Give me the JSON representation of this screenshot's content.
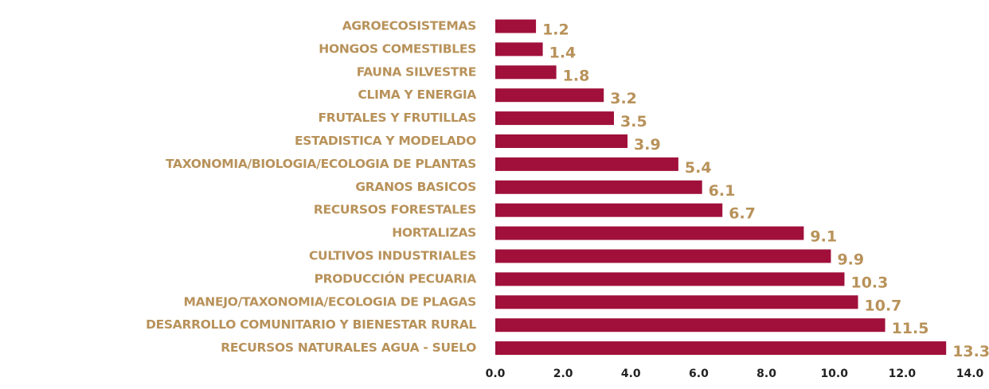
{
  "chart_data": {
    "type": "barh",
    "categories": [
      "AGROECOSISTEMAS",
      "HONGOS COMESTIBLES",
      "FAUNA SILVESTRE",
      "CLIMA  Y ENERGIA",
      "FRUTALES Y FRUTILLAS",
      "ESTADISTICA Y MODELADO",
      "TAXONOMIA/BIOLOGIA/ECOLOGIA DE PLANTAS",
      "GRANOS BASICOS",
      "RECURSOS FORESTALES",
      "HORTALIZAS",
      "CULTIVOS INDUSTRIALES",
      "PRODUCCIÓN PECUARIA",
      "MANEJO/TAXONOMIA/ECOLOGIA DE PLAGAS",
      "DESARROLLO COMUNITARIO Y BIENESTAR RURAL",
      "RECURSOS NATURALES AGUA - SUELO"
    ],
    "values": [
      1.2,
      1.4,
      1.8,
      3.2,
      3.5,
      3.9,
      5.4,
      6.1,
      6.7,
      9.1,
      9.9,
      10.3,
      10.7,
      11.5,
      13.3
    ],
    "color": "#a0103a",
    "xlim": [
      0,
      14
    ],
    "xticks": [
      {
        "value": 0,
        "label": "0.0"
      },
      {
        "value": 2,
        "label": "2.0"
      },
      {
        "value": 4,
        "label": "4.0"
      },
      {
        "value": 6,
        "label": "6.0"
      },
      {
        "value": 8,
        "label": "8.0"
      },
      {
        "value": 10,
        "label": "10.0"
      },
      {
        "value": 12,
        "label": "12.0"
      },
      {
        "value": 14,
        "label": "14.0"
      }
    ],
    "grid": false
  }
}
